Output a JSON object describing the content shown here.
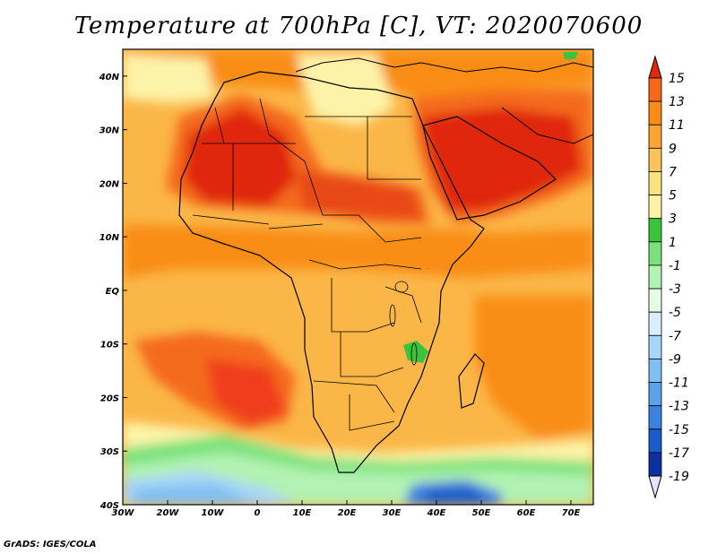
{
  "title": "Temperature at 700hPa [C], VT: 2020070600",
  "credit": "GrADS: IGES/COLA",
  "map": {
    "lon_range": [
      -30,
      75
    ],
    "lat_range": [
      -40,
      45
    ],
    "lon_ticks": [
      {
        "value": -30,
        "label": "30W"
      },
      {
        "value": -20,
        "label": "20W"
      },
      {
        "value": -10,
        "label": "10W"
      },
      {
        "value": 0,
        "label": "0"
      },
      {
        "value": 10,
        "label": "10E"
      },
      {
        "value": 20,
        "label": "20E"
      },
      {
        "value": 30,
        "label": "30E"
      },
      {
        "value": 40,
        "label": "40E"
      },
      {
        "value": 50,
        "label": "50E"
      },
      {
        "value": 60,
        "label": "60E"
      },
      {
        "value": 70,
        "label": "70E"
      }
    ],
    "lat_ticks": [
      {
        "value": 40,
        "label": "40N"
      },
      {
        "value": 30,
        "label": "30N"
      },
      {
        "value": 20,
        "label": "20N"
      },
      {
        "value": 10,
        "label": "10N"
      },
      {
        "value": 0,
        "label": "EQ"
      },
      {
        "value": -10,
        "label": "10S"
      },
      {
        "value": -20,
        "label": "20S"
      },
      {
        "value": -30,
        "label": "30S"
      },
      {
        "value": -40,
        "label": "40S"
      }
    ]
  },
  "colorbar": {
    "labels": [
      "15",
      "13",
      "11",
      "9",
      "7",
      "5",
      "3",
      "1",
      "-1",
      "-3",
      "-5",
      "-7",
      "-9",
      "-11",
      "-13",
      "-15",
      "-17",
      "-19"
    ],
    "colors": [
      "#f03c1f",
      "#f46a1a",
      "#f98d17",
      "#faa534",
      "#fbc35a",
      "#fbe27f",
      "#fdf3a8",
      "#3cc33c",
      "#7be27b",
      "#b2f2b2",
      "#e5fbe5",
      "#d8eefc",
      "#a8d6f8",
      "#80bff2",
      "#5ca3ec",
      "#3d82e0",
      "#1c5cc8",
      "#0c30a0",
      "#101c6c"
    ],
    "top_arrow_color": "#e0280a",
    "bottom_arrow_color": "#e8e4ff"
  }
}
